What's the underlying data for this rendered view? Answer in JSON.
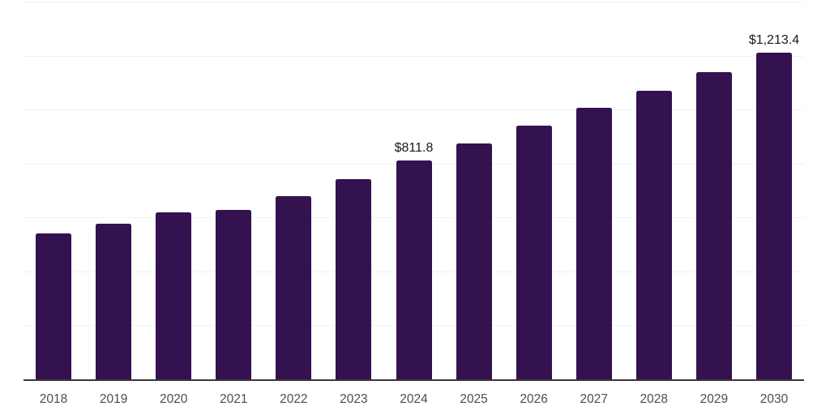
{
  "chart_data": {
    "type": "bar",
    "title": "",
    "xlabel": "",
    "ylabel": "",
    "categories": [
      "2018",
      "2019",
      "2020",
      "2021",
      "2022",
      "2023",
      "2024",
      "2025",
      "2026",
      "2027",
      "2028",
      "2029",
      "2030"
    ],
    "values": [
      540,
      578,
      620,
      628,
      681,
      743,
      811.8,
      875,
      940,
      1007,
      1072,
      1140,
      1213.4
    ],
    "value_labels": [
      null,
      null,
      null,
      null,
      null,
      null,
      "$811.8",
      null,
      null,
      null,
      null,
      null,
      "$1,213.4"
    ],
    "ylim": [
      0,
      1400
    ],
    "grid_step": 200,
    "grid": "horizontal",
    "legend": "none",
    "colors": {
      "background": "#ffffff",
      "bar": "#34114f",
      "grid_line": "#f2f2f2",
      "axis_line": "#383838",
      "tick_label": "#4d4d4d",
      "value_label": "#1a1a1a"
    }
  }
}
